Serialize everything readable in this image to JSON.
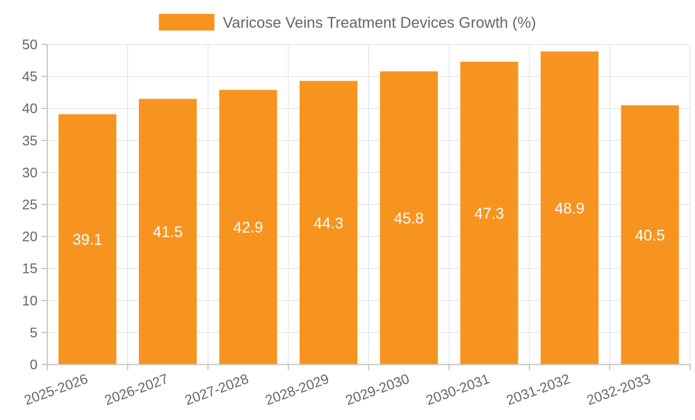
{
  "chart_data": {
    "type": "bar",
    "title": "",
    "xlabel": "",
    "ylabel": "",
    "categories": [
      "2025-2026",
      "2026-2027",
      "2027-2028",
      "2028-2029",
      "2029-2030",
      "2030-2031",
      "2031-2032",
      "2032-2033"
    ],
    "series": [
      {
        "name": "Varicose Veins Treatment Devices Growth (%)",
        "values": [
          39.1,
          41.5,
          42.9,
          44.3,
          45.8,
          47.3,
          48.9,
          40.5
        ],
        "color": "#F7941F"
      }
    ],
    "ylim": [
      0,
      50
    ],
    "y_ticks": [
      0,
      5,
      10,
      15,
      20,
      25,
      30,
      35,
      40,
      45,
      50
    ],
    "grid": true,
    "legend": {
      "position": "top-center"
    },
    "data_labels": [
      "39.1",
      "41.5",
      "42.9",
      "44.3",
      "45.8",
      "47.3",
      "48.9",
      "40.5"
    ]
  }
}
